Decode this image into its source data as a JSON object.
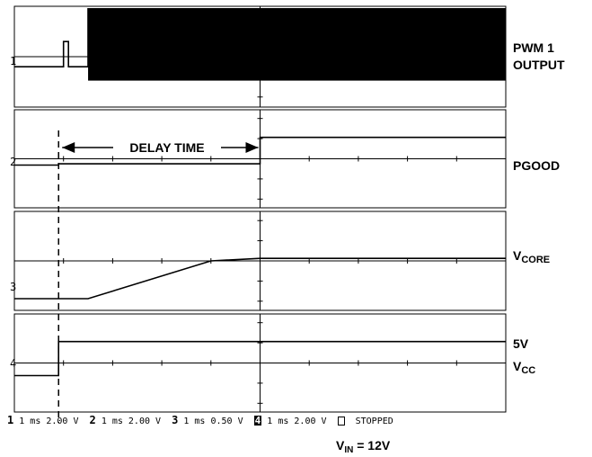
{
  "chart_data": {
    "type": "line",
    "title": "",
    "x_unit": "ms",
    "time_per_div": 1,
    "x_range": [
      -5,
      5
    ],
    "annotation": "DELAY TIME",
    "delay_time_range": [
      -4.1,
      0
    ],
    "channels": [
      {
        "id": "1",
        "name_line1": "PWM 1",
        "name_line2": "OUTPUT",
        "scale": "1 ms 2.00 V",
        "x": [
          -5.0,
          -4.0,
          -4.0,
          -3.9,
          -3.9,
          -3.5,
          -3.5,
          5.0
        ],
        "y": [
          -0.4,
          -0.4,
          0.6,
          0.6,
          -0.4,
          -0.4,
          1.9,
          1.9
        ],
        "note": "switching burst from -3.5 ms onward"
      },
      {
        "id": "2",
        "name_line1": "PGOOD",
        "name_line2": "",
        "scale": "1 ms 2.00 V",
        "x": [
          -5.0,
          -4.1,
          -4.1,
          0.0,
          0.0,
          5.0
        ],
        "y": [
          -0.25,
          -0.25,
          -0.2,
          -0.2,
          0.85,
          0.85
        ]
      },
      {
        "id": "3",
        "name_prefix": "V",
        "name_sub": "CORE",
        "scale": "1 ms 0.50 V",
        "x": [
          -5.0,
          -3.5,
          -1.0,
          0.0,
          5.0
        ],
        "y": [
          -1.5,
          -1.5,
          0.0,
          0.1,
          0.1
        ]
      },
      {
        "id": "4",
        "name_line1": "5V",
        "name_prefix": "V",
        "name_sub": "CC",
        "scale": "1 ms 2.00 V",
        "x": [
          -5.0,
          -4.1,
          -4.1,
          5.0
        ],
        "y": [
          -0.5,
          -0.5,
          0.85,
          0.85
        ]
      }
    ]
  },
  "readout": {
    "ch1_num": "1",
    "ch1_text": "1 ms 2.00 V",
    "ch2_num": "2",
    "ch2_text": "1 ms 2.00 V",
    "ch3_num": "3",
    "ch3_text": "1 ms 0.50 V",
    "ch4_num": "4",
    "ch4_text": "1 ms 2.00 V",
    "status": "STOPPED"
  },
  "footer": {
    "vin_prefix": "V",
    "vin_sub": "IN",
    "vin_value": " = 12V"
  }
}
